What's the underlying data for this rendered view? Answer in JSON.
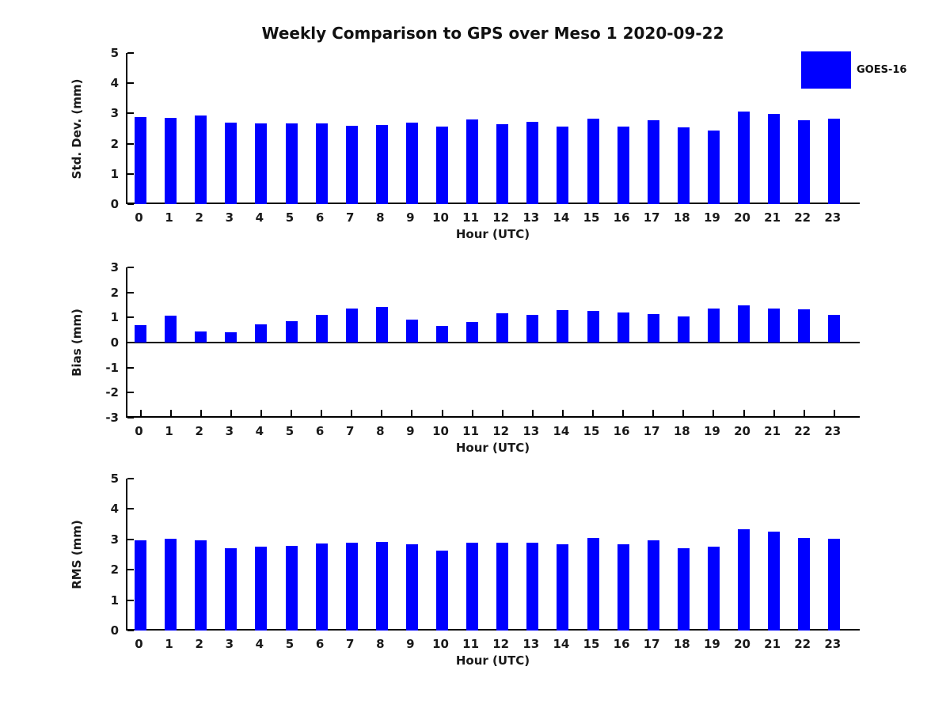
{
  "title": "Weekly Comparison to GPS over Meso 1 2020-09-22",
  "legend": {
    "label": "GOES-16",
    "color": "#0000ff"
  },
  "colors": {
    "bar": "#0000ff",
    "axis": "#000000",
    "text": "#1a1a1a"
  },
  "chart_data": [
    {
      "type": "bar",
      "name": "std-dev",
      "ylabel": "Std. Dev. (mm)",
      "xlabel": "Hour (UTC)",
      "ylim": [
        0,
        5
      ],
      "yticks": [
        0,
        1,
        2,
        3,
        4,
        5
      ],
      "grid": false,
      "zero_line": false,
      "x_tick_marks": false,
      "categories": [
        "0",
        "1",
        "2",
        "3",
        "4",
        "5",
        "6",
        "7",
        "8",
        "9",
        "10",
        "11",
        "12",
        "13",
        "14",
        "15",
        "16",
        "17",
        "18",
        "19",
        "20",
        "21",
        "22",
        "23"
      ],
      "series": [
        {
          "name": "GOES-16",
          "values": [
            2.89,
            2.86,
            2.93,
            2.7,
            2.67,
            2.67,
            2.67,
            2.6,
            2.63,
            2.7,
            2.57,
            2.81,
            2.65,
            2.73,
            2.57,
            2.83,
            2.57,
            2.78,
            2.55,
            2.44,
            3.05,
            2.98,
            2.78,
            2.83
          ]
        }
      ]
    },
    {
      "type": "bar",
      "name": "bias",
      "ylabel": "Bias (mm)",
      "xlabel": "Hour (UTC)",
      "ylim": [
        -3,
        3
      ],
      "yticks": [
        -3,
        -2,
        -1,
        0,
        1,
        2,
        3
      ],
      "grid": false,
      "zero_line": true,
      "x_tick_marks": true,
      "categories": [
        "0",
        "1",
        "2",
        "3",
        "4",
        "5",
        "6",
        "7",
        "8",
        "9",
        "10",
        "11",
        "12",
        "13",
        "14",
        "15",
        "16",
        "17",
        "18",
        "19",
        "20",
        "21",
        "22",
        "23"
      ],
      "series": [
        {
          "name": "GOES-16",
          "values": [
            0.69,
            1.07,
            0.44,
            0.4,
            0.73,
            0.85,
            1.1,
            1.36,
            1.42,
            0.92,
            0.66,
            0.82,
            1.17,
            1.11,
            1.29,
            1.26,
            1.21,
            1.14,
            1.03,
            1.36,
            1.5,
            1.35,
            1.33,
            1.11
          ]
        }
      ]
    },
    {
      "type": "bar",
      "name": "rms",
      "ylabel": "RMS (mm)",
      "xlabel": "Hour (UTC)",
      "ylim": [
        0,
        5
      ],
      "yticks": [
        0,
        1,
        2,
        3,
        4,
        5
      ],
      "grid": false,
      "zero_line": false,
      "x_tick_marks": false,
      "categories": [
        "0",
        "1",
        "2",
        "3",
        "4",
        "5",
        "6",
        "7",
        "8",
        "9",
        "10",
        "11",
        "12",
        "13",
        "14",
        "15",
        "16",
        "17",
        "18",
        "19",
        "20",
        "21",
        "22",
        "23"
      ],
      "series": [
        {
          "name": "GOES-16",
          "values": [
            2.96,
            3.03,
            2.96,
            2.72,
            2.77,
            2.79,
            2.87,
            2.88,
            2.92,
            2.83,
            2.64,
            2.9,
            2.88,
            2.89,
            2.85,
            3.05,
            2.83,
            2.97,
            2.71,
            2.77,
            3.33,
            3.25,
            3.05,
            3.02
          ]
        }
      ]
    }
  ]
}
